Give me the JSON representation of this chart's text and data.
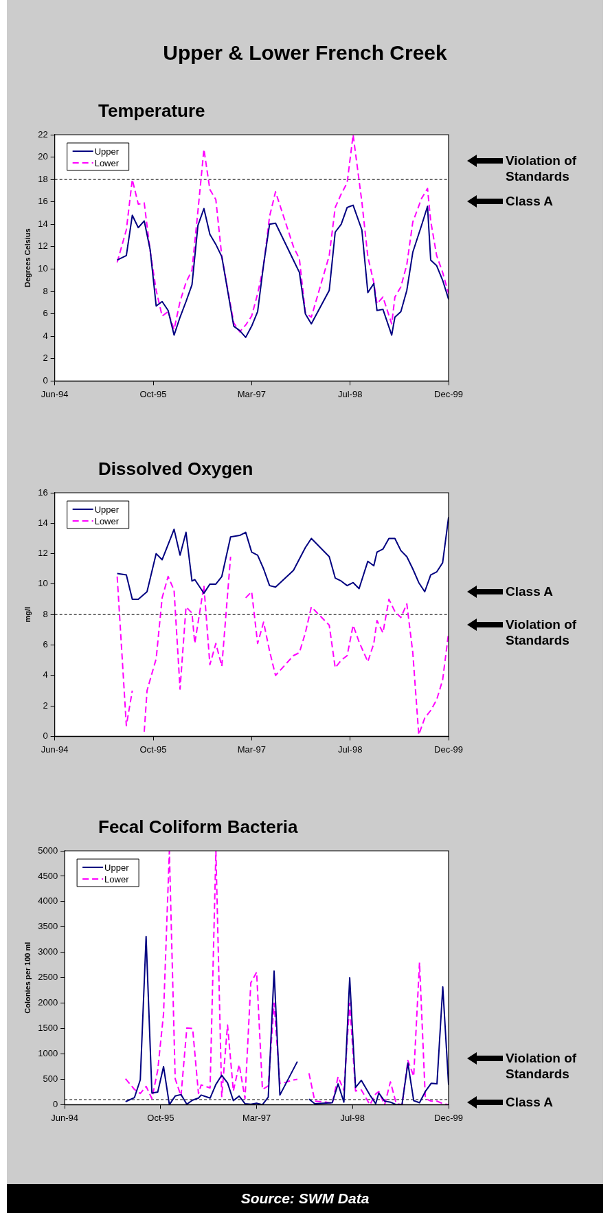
{
  "chart_data": [
    {
      "type": "line",
      "title": "Upper & Lower French Creek",
      "subtitle": "Temperature",
      "ylabel": "Degrees Celsius",
      "xlim": [
        "1994-06-01",
        "1999-12-01"
      ],
      "xticks": [
        {
          "value": "1994-06-01",
          "label": "Jun-94"
        },
        {
          "value": "1995-10-16",
          "label": "Oct-95"
        },
        {
          "value": "1997-03-01",
          "label": "Mar-97"
        },
        {
          "value": "1998-07-16",
          "label": "Jul-98"
        },
        {
          "value": "1999-12-01",
          "label": "Dec-99"
        }
      ],
      "ylim": [
        0,
        22
      ],
      "yticks": [
        0,
        2,
        4,
        6,
        8,
        10,
        12,
        14,
        16,
        18,
        20,
        22
      ],
      "legend": "top left",
      "marker": "none",
      "ref_lines": [
        {
          "axis": "y",
          "value": 18,
          "color": "#000000",
          "line_style": "dashed"
        }
      ],
      "annotations": [
        "Violation of Standards",
        "Class A"
      ],
      "series": [
        {
          "name": "Upper",
          "color": "#000080",
          "line_style": "solid",
          "x": [
            "1995-04-15",
            "1995-06-01",
            "1995-07-01",
            "1995-08-01",
            "1995-09-01",
            "1995-10-01",
            "1995-11-01",
            "1995-12-01",
            "1996-01-01",
            "1996-02-01",
            "1996-03-01",
            "1996-04-01",
            "1996-05-01",
            "1996-06-01",
            "1996-07-01",
            "1996-08-01",
            "1996-09-01",
            "1996-10-01",
            "1996-12-01",
            "1997-01-01",
            "1997-02-01",
            "1997-03-01",
            "1997-04-01",
            "1997-05-01",
            "1997-06-01",
            "1997-07-01",
            "1997-10-01",
            "1997-11-01",
            "1997-12-01",
            "1998-01-01",
            "1998-04-01",
            "1998-05-01",
            "1998-06-01",
            "1998-07-01",
            "1998-08-01",
            "1998-09-15",
            "1998-10-15",
            "1998-11-15",
            "1998-12-01",
            "1999-01-01",
            "1999-02-15",
            "1999-03-01",
            "1999-04-01",
            "1999-05-01",
            "1999-06-01",
            "1999-07-15",
            "1999-08-15",
            "1999-09-01",
            "1999-10-01",
            "1999-11-01",
            "1999-12-01"
          ],
          "values": [
            10.8,
            11.2,
            14.8,
            13.7,
            14.3,
            11.7,
            6.7,
            7.1,
            6.3,
            4.1,
            5.7,
            7.1,
            8.6,
            13.9,
            15.4,
            13.1,
            12.2,
            11.1,
            4.9,
            4.5,
            3.9,
            4.9,
            6.2,
            10.4,
            14.0,
            14.1,
            10.8,
            9.7,
            6.0,
            5.1,
            8.1,
            13.3,
            14.0,
            15.5,
            15.7,
            13.5,
            7.9,
            8.7,
            6.3,
            6.4,
            4.1,
            5.7,
            6.2,
            8.1,
            11.5,
            13.9,
            15.6,
            10.8,
            10.3,
            9.0,
            7.3
          ]
        },
        {
          "name": "Lower",
          "color": "#ff00ff",
          "line_style": "dashed",
          "x": [
            "1995-04-15",
            "1995-06-01",
            "1995-07-01",
            "1995-08-01",
            "1995-09-01",
            "1995-10-01",
            "1995-11-01",
            "1995-12-01",
            "1996-01-01",
            "1996-02-01",
            "1996-03-01",
            "1996-04-01",
            "1996-05-01",
            "1996-06-01",
            "1996-07-01",
            "1996-08-01",
            "1996-09-01",
            "1996-10-01",
            "1996-12-01",
            "1997-01-01",
            "1997-02-01",
            "1997-03-01",
            "1997-04-01",
            "1997-05-01",
            "1997-06-01",
            "1997-07-01",
            "1997-10-01",
            "1997-11-01",
            "1997-12-01",
            "1998-01-01",
            "1998-04-01",
            "1998-05-01",
            "1998-06-01",
            "1998-07-01",
            "1998-08-01",
            "1998-09-15",
            "1998-10-15",
            "1998-11-15",
            "1998-12-01",
            "1999-01-01",
            "1999-02-15",
            "1999-03-01",
            "1999-04-01",
            "1999-05-01",
            "1999-06-01",
            "1999-07-15",
            "1999-08-15",
            "1999-09-01",
            "1999-10-01",
            "1999-11-01",
            "1999-12-01"
          ],
          "values": [
            10.6,
            13.5,
            18.0,
            15.8,
            15.9,
            11.6,
            8.1,
            5.8,
            6.2,
            4.6,
            7.1,
            8.8,
            9.9,
            15.2,
            20.7,
            17.1,
            16.2,
            11.1,
            5.2,
            4.4,
            5.0,
            5.8,
            7.8,
            10.3,
            14.7,
            16.9,
            12.0,
            10.9,
            6.1,
            5.7,
            11.2,
            15.5,
            16.7,
            17.7,
            22.0,
            16.0,
            11.1,
            8.8,
            6.9,
            7.5,
            5.1,
            7.5,
            8.4,
            10.4,
            14.2,
            16.3,
            17.2,
            14.3,
            11.2,
            9.7,
            7.8
          ]
        }
      ]
    },
    {
      "type": "line",
      "title": "Dissolved Oxygen",
      "ylabel": "mg/l",
      "xlim": [
        "1994-06-01",
        "1999-12-01"
      ],
      "xticks": [
        {
          "value": "1994-06-01",
          "label": "Jun-94"
        },
        {
          "value": "1995-10-16",
          "label": "Oct-95"
        },
        {
          "value": "1997-03-01",
          "label": "Mar-97"
        },
        {
          "value": "1998-07-16",
          "label": "Jul-98"
        },
        {
          "value": "1999-12-01",
          "label": "Dec-99"
        }
      ],
      "ylim": [
        0,
        16
      ],
      "yticks": [
        0,
        2,
        4,
        6,
        8,
        10,
        12,
        14,
        16
      ],
      "legend": "top left",
      "marker": "none",
      "ref_lines": [
        {
          "axis": "y",
          "value": 8,
          "color": "#000000",
          "line_style": "dashed"
        }
      ],
      "annotations": [
        "Class A",
        "Violation of Standards"
      ],
      "series": [
        {
          "name": "Upper",
          "color": "#000080",
          "line_style": "solid",
          "x": [
            "1995-04-15",
            "1995-06-01",
            "1995-07-01",
            "1995-08-01",
            "1995-09-15",
            "1995-11-01",
            "1995-12-01",
            "1996-01-01",
            "1996-02-01",
            "1996-03-01",
            "1996-04-01",
            "1996-05-01",
            "1996-05-15",
            "1996-07-01",
            "1996-08-01",
            "1996-09-01",
            "1996-10-01",
            "1996-11-15",
            "1997-01-01",
            "1997-02-01",
            "1997-03-01",
            "1997-04-01",
            "1997-05-01",
            "1997-06-01",
            "1997-07-01",
            "1997-10-01",
            "1997-12-01",
            "1998-01-01",
            "1998-04-01",
            "1998-05-01",
            "1998-06-01",
            "1998-07-01",
            "1998-08-01",
            "1998-09-01",
            "1998-10-15",
            "1998-11-15",
            "1998-12-01",
            "1999-01-01",
            "1999-02-01",
            "1999-03-01",
            "1999-04-01",
            "1999-05-01",
            "1999-06-01",
            "1999-07-01",
            "1999-08-01",
            "1999-09-01",
            "1999-10-01",
            "1999-11-01",
            "1999-12-01"
          ],
          "values": [
            10.7,
            10.6,
            9.0,
            9.0,
            9.5,
            12.0,
            11.6,
            12.6,
            13.6,
            11.9,
            13.4,
            10.2,
            10.3,
            9.4,
            10.0,
            10.0,
            10.5,
            13.1,
            13.2,
            13.4,
            12.1,
            11.9,
            11.0,
            9.9,
            9.8,
            10.9,
            12.4,
            13.0,
            11.8,
            10.4,
            10.2,
            9.9,
            10.1,
            9.7,
            11.5,
            11.2,
            12.1,
            12.3,
            13.0,
            13.0,
            12.2,
            11.8,
            11.0,
            10.1,
            9.5,
            10.6,
            10.8,
            11.4,
            14.4
          ]
        },
        {
          "name": "Lower",
          "color": "#ff00ff",
          "line_style": "dashed",
          "x": [
            "1995-04-15",
            "1995-06-01",
            "1995-07-01",
            "1995-08-01",
            "1995-09-01",
            "1995-09-15",
            "1995-11-01",
            "1995-12-01",
            "1996-01-01",
            "1996-02-01",
            "1996-03-01",
            "1996-04-01",
            "1996-05-01",
            "1996-05-15",
            "1996-07-01",
            "1996-08-01",
            "1996-09-01",
            "1996-10-01",
            "1996-11-15",
            "1997-01-01",
            "1997-02-01",
            "1997-03-01",
            "1997-04-01",
            "1997-05-01",
            "1997-06-01",
            "1997-07-01",
            "1997-10-01",
            "1997-11-01",
            "1997-12-01",
            "1998-01-01",
            "1998-04-01",
            "1998-05-01",
            "1998-06-01",
            "1998-07-01",
            "1998-08-01",
            "1998-09-01",
            "1998-10-15",
            "1998-11-15",
            "1998-12-01",
            "1999-01-01",
            "1999-02-01",
            "1999-03-01",
            "1999-04-01",
            "1999-05-01",
            "1999-06-01",
            "1999-07-01",
            "1999-08-01",
            "1999-09-01",
            "1999-10-01",
            "1999-11-01",
            "1999-12-01"
          ],
          "values": [
            10.5,
            0.7,
            3.0,
            null,
            0.3,
            3.0,
            5.1,
            9.1,
            10.5,
            9.6,
            3.1,
            8.5,
            8.1,
            6.1,
            9.9,
            4.7,
            6.1,
            4.6,
            11.8,
            null,
            9.1,
            9.5,
            6.1,
            7.5,
            5.6,
            4.0,
            5.3,
            5.5,
            6.8,
            8.5,
            7.3,
            4.5,
            5.0,
            5.3,
            7.3,
            6.2,
            4.9,
            6.1,
            7.6,
            6.8,
            9.0,
            8.2,
            7.8,
            8.7,
            5.5,
            0.1,
            1.2,
            1.7,
            2.4,
            3.7,
            6.8
          ]
        }
      ]
    },
    {
      "type": "line",
      "title": "Fecal Coliform Bacteria",
      "ylabel": "Colonies per 100 ml",
      "xlim": [
        "1994-06-01",
        "1999-12-01"
      ],
      "xticks": [
        {
          "value": "1994-06-01",
          "label": "Jun-94"
        },
        {
          "value": "1995-10-16",
          "label": "Oct-95"
        },
        {
          "value": "1997-03-01",
          "label": "Mar-97"
        },
        {
          "value": "1998-07-16",
          "label": "Jul-98"
        },
        {
          "value": "1999-12-01",
          "label": "Dec-99"
        }
      ],
      "ylim": [
        0,
        5000
      ],
      "yticks": [
        0,
        500,
        1000,
        1500,
        2000,
        2500,
        3000,
        3500,
        4000,
        4500,
        5000
      ],
      "legend": "top left",
      "marker": "none",
      "ref_lines": [
        {
          "axis": "y",
          "value": 100,
          "color": "#000000",
          "line_style": "dashed"
        }
      ],
      "annotations": [
        "Violation of Standards",
        "Class A",
        "Source: SWM Data"
      ],
      "series": [
        {
          "name": "Upper",
          "color": "#000080",
          "line_style": "solid",
          "x": [
            "1995-04-15",
            "1995-06-01",
            "1995-07-01",
            "1995-08-01",
            "1995-09-01",
            "1995-10-01",
            "1995-11-01",
            "1995-12-01",
            "1996-01-01",
            "1996-02-01",
            "1996-03-01",
            "1996-04-01",
            "1996-05-01",
            "1996-05-15",
            "1996-07-01",
            "1996-08-01",
            "1996-09-01",
            "1996-10-01",
            "1996-11-01",
            "1996-12-01",
            "1997-01-01",
            "1997-02-01",
            "1997-03-01",
            "1997-04-01",
            "1997-05-01",
            "1997-06-01",
            "1997-07-01",
            "1997-10-01",
            "1997-11-01",
            "1997-12-01",
            "1998-01-01",
            "1998-04-01",
            "1998-05-01",
            "1998-06-01",
            "1998-07-01",
            "1998-08-01",
            "1998-09-01",
            "1998-10-15",
            "1998-11-15",
            "1998-12-01",
            "1999-01-01",
            "1999-02-01",
            "1999-03-01",
            "1999-04-01",
            "1999-05-01",
            "1999-06-01",
            "1999-07-01",
            "1999-08-01",
            "1999-09-01",
            "1999-10-01",
            "1999-11-01",
            "1999-12-01"
          ],
          "values": [
            60,
            140,
            490,
            3310,
            230,
            250,
            750,
            0,
            170,
            200,
            10,
            90,
            130,
            190,
            130,
            400,
            580,
            430,
            80,
            170,
            20,
            10,
            30,
            0,
            150,
            2630,
            190,
            850,
            null,
            110,
            20,
            40,
            410,
            50,
            2500,
            340,
            480,
            190,
            20,
            230,
            70,
            50,
            0,
            10,
            820,
            80,
            40,
            260,
            420,
            410,
            2320,
            390
          ]
        },
        {
          "name": "Lower",
          "color": "#ff00ff",
          "line_style": "dashed",
          "x": [
            "1995-04-15",
            "1995-06-01",
            "1995-07-01",
            "1995-08-01",
            "1995-09-01",
            "1995-10-01",
            "1995-11-01",
            "1995-12-01",
            "1996-01-01",
            "1996-02-01",
            "1996-03-01",
            "1996-04-01",
            "1996-05-01",
            "1996-05-15",
            "1996-07-01",
            "1996-08-01",
            "1996-09-01",
            "1996-10-01",
            "1996-11-01",
            "1996-12-01",
            "1997-01-01",
            "1997-02-01",
            "1997-03-01",
            "1997-04-01",
            "1997-05-01",
            "1997-06-01",
            "1997-07-01",
            "1997-08-01",
            "1997-09-01",
            "1997-10-01",
            "1997-11-01",
            "1997-12-01",
            "1998-01-01",
            "1998-03-01",
            "1998-04-01",
            "1998-05-01",
            "1998-06-01",
            "1998-07-01",
            "1998-08-01",
            "1998-09-01",
            "1998-10-15",
            "1998-11-15",
            "1998-12-01",
            "1999-01-01",
            "1999-02-01",
            "1999-03-01",
            "1999-04-01",
            "1999-05-01",
            "1999-06-01",
            "1999-07-01",
            "1999-08-01",
            "1999-09-01",
            "1999-10-01",
            "1999-11-01",
            "1999-12-01"
          ],
          "values": [
            510,
            300,
            220,
            360,
            120,
            680,
            1790,
            5000,
            510,
            170,
            1510,
            1500,
            220,
            390,
            330,
            5000,
            160,
            1570,
            270,
            790,
            120,
            2400,
            2610,
            300,
            370,
            2000,
            420,
            440,
            480,
            500,
            null,
            620,
            70,
            50,
            20,
            550,
            280,
            2000,
            270,
            290,
            0,
            210,
            260,
            0,
            450,
            20,
            0,
            870,
            560,
            2800,
            120,
            70,
            70,
            20,
            0
          ]
        }
      ]
    }
  ]
}
